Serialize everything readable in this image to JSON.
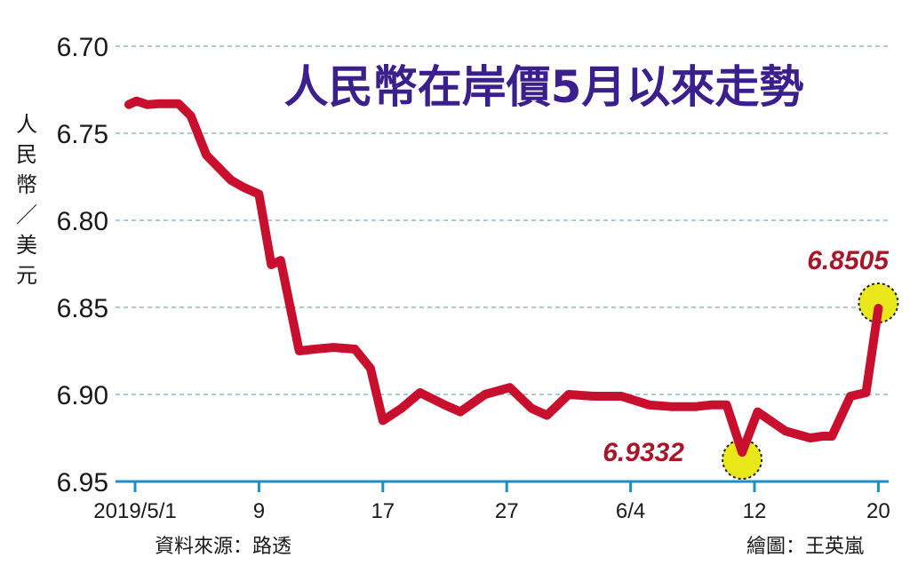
{
  "chart_data": {
    "type": "line",
    "title": "人民幣在岸價5月以來走勢",
    "ylabel": "人民幣／美元",
    "xlabel": "",
    "ylim": [
      6.7,
      6.95
    ],
    "y_inverted": true,
    "yticks": [
      "6.70",
      "6.75",
      "6.80",
      "6.85",
      "6.90",
      "6.95"
    ],
    "xticks": [
      {
        "label": "2019/5/1",
        "x": 0
      },
      {
        "label": "9",
        "x": 4
      },
      {
        "label": "17",
        "x": 8
      },
      {
        "label": "27",
        "x": 12
      },
      {
        "label": "6/4",
        "x": 16
      },
      {
        "label": "12",
        "x": 20
      },
      {
        "label": "20",
        "x": 24
      }
    ],
    "grid": true,
    "line_color": "#c8102e",
    "series": [
      {
        "x": [
          -0.2,
          0.05,
          0.4,
          0.8,
          1.4,
          1.8,
          2.3,
          3.1,
          3.5,
          4.0,
          4.4,
          4.7,
          5.3,
          5.8,
          6.4,
          7.1,
          7.6,
          8.0,
          8.6,
          9.2,
          10.0,
          10.5,
          11.3,
          12.1,
          12.8,
          13.3,
          14.0,
          14.8,
          15.7,
          16.6,
          17.3,
          18.1,
          18.6,
          19.1,
          19.6,
          20.1,
          21.0,
          21.8,
          22.2,
          22.5,
          23.1,
          23.6,
          24.0
        ],
        "y": [
          6.7335,
          6.7315,
          6.7335,
          6.733,
          6.733,
          6.74,
          6.7625,
          6.777,
          6.781,
          6.785,
          6.8255,
          6.823,
          6.875,
          6.874,
          6.873,
          6.874,
          6.885,
          6.915,
          6.908,
          6.899,
          6.906,
          6.91,
          6.9,
          6.896,
          6.908,
          6.912,
          6.9,
          6.901,
          6.901,
          6.906,
          6.907,
          6.907,
          6.906,
          6.906,
          6.9332,
          6.91,
          6.921,
          6.925,
          6.924,
          6.924,
          6.901,
          6.899,
          6.8505
        ]
      }
    ],
    "annotations": [
      {
        "text": "6.8505",
        "x": 24.0,
        "y": 6.8505,
        "marker": "yellow-circle"
      },
      {
        "text": "6.9332",
        "x": 19.6,
        "y": 6.9332,
        "marker": "yellow-circle"
      }
    ]
  },
  "footer": {
    "source": "資料來源：路透",
    "credit": "繪圖：王英嵐"
  },
  "colors": {
    "title": "#3b1f8c",
    "line": "#c8102e",
    "callout_text": "#a8162a",
    "grid": "#8fb9d6",
    "axis": "#1a8fc9",
    "marker_fill": "#e8e81a"
  }
}
